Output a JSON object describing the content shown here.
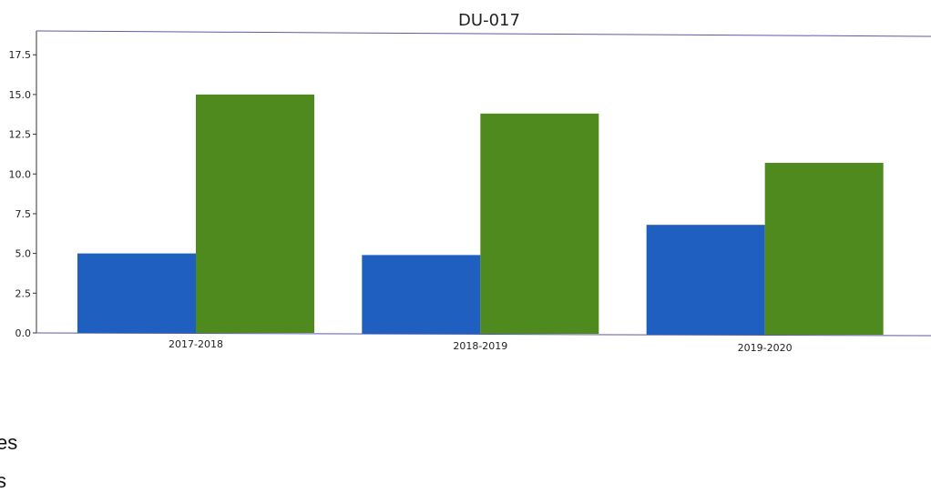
{
  "chart_data": {
    "type": "bar",
    "title": "DU-017",
    "xlabel": "",
    "ylabel": "",
    "categories": [
      "2017-2018",
      "2018-2019",
      "2019-2020"
    ],
    "series": [
      {
        "values": [
          5.0,
          4.9,
          6.8
        ],
        "color": "#1f5fbf"
      },
      {
        "values": [
          15.0,
          13.8,
          10.7
        ],
        "color": "#4f8a1f"
      }
    ],
    "ylim": [
      0,
      19
    ],
    "yticks": [
      "0.0",
      "2.5",
      "5.0",
      "7.5",
      "10.0",
      "12.5",
      "15.0",
      "17.5"
    ],
    "grid": false
  },
  "clipped_text": [
    "es",
    "s"
  ]
}
